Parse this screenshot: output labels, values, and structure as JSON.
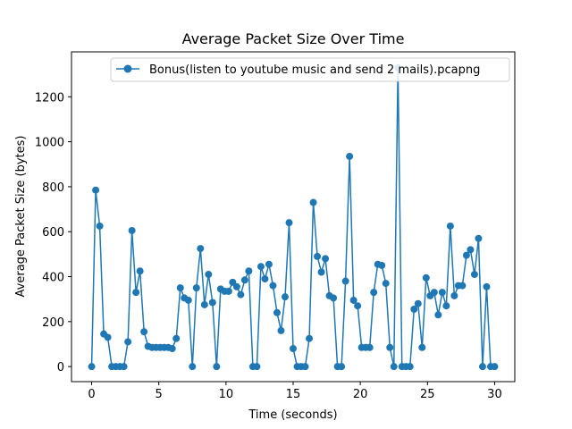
{
  "chart_data": {
    "type": "line",
    "title": "Average Packet Size Over Time",
    "xlabel": "Time (seconds)",
    "ylabel": "Average Packet Size (bytes)",
    "xlim": [
      -1.5,
      31.5
    ],
    "ylim": [
      -67,
      1400
    ],
    "xticks": [
      0,
      5,
      10,
      15,
      20,
      25,
      30
    ],
    "yticks": [
      0,
      200,
      400,
      600,
      800,
      1000,
      1200
    ],
    "grid": false,
    "legend_position": "top-right",
    "color": "#1f77b4",
    "series": [
      {
        "name": "Bonus(listen to youtube music and send 2 mails).pcapng",
        "x": [
          0.0,
          0.3,
          0.6,
          0.9,
          1.2,
          1.5,
          1.8,
          2.1,
          2.4,
          2.7,
          3.0,
          3.3,
          3.6,
          3.9,
          4.2,
          4.5,
          4.8,
          5.1,
          5.4,
          5.7,
          6.0,
          6.3,
          6.6,
          6.9,
          7.2,
          7.5,
          7.8,
          8.1,
          8.4,
          8.7,
          9.0,
          9.3,
          9.6,
          9.9,
          10.2,
          10.5,
          10.8,
          11.1,
          11.4,
          11.7,
          12.0,
          12.3,
          12.6,
          12.9,
          13.2,
          13.5,
          13.8,
          14.1,
          14.4,
          14.7,
          15.0,
          15.3,
          15.6,
          15.9,
          16.2,
          16.5,
          16.8,
          17.1,
          17.4,
          17.7,
          18.0,
          18.3,
          18.6,
          18.9,
          19.2,
          19.5,
          19.8,
          20.1,
          20.4,
          20.7,
          21.0,
          21.3,
          21.6,
          21.9,
          22.2,
          22.5,
          22.8,
          23.1,
          23.4,
          23.7,
          24.0,
          24.3,
          24.6,
          24.9,
          25.2,
          25.5,
          25.8,
          26.1,
          26.4,
          26.7,
          27.0,
          27.3,
          27.6,
          27.9,
          28.2,
          28.5,
          28.8,
          29.1,
          29.4,
          29.7,
          30.0
        ],
        "y": [
          0,
          785,
          625,
          145,
          130,
          0,
          0,
          0,
          0,
          110,
          605,
          330,
          425,
          155,
          90,
          85,
          85,
          85,
          85,
          85,
          80,
          125,
          350,
          305,
          295,
          0,
          350,
          525,
          275,
          410,
          285,
          0,
          345,
          335,
          335,
          375,
          355,
          320,
          385,
          425,
          0,
          0,
          445,
          390,
          455,
          360,
          240,
          160,
          310,
          640,
          80,
          0,
          0,
          0,
          125,
          730,
          490,
          420,
          480,
          315,
          305,
          0,
          0,
          380,
          935,
          295,
          270,
          85,
          85,
          85,
          330,
          455,
          450,
          370,
          85,
          0,
          1330,
          0,
          0,
          0,
          255,
          280,
          85,
          395,
          315,
          330,
          230,
          330,
          270,
          625,
          315,
          360,
          360,
          495,
          520,
          410,
          570,
          0,
          355,
          0,
          0
        ]
      }
    ]
  }
}
